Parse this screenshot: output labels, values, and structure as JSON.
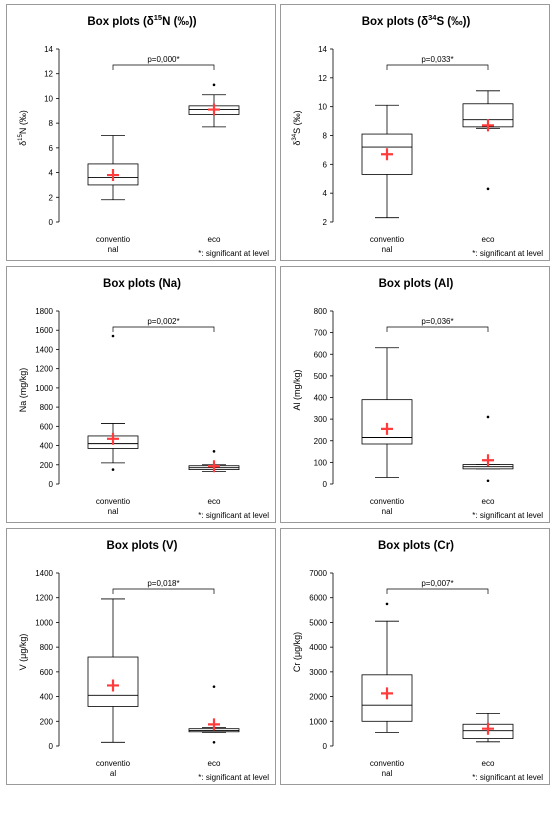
{
  "footnote": "*: significant at level",
  "mean_marker_color": "#ff3b3b",
  "chart_data": [
    {
      "type": "box",
      "title_main": "Box plots (δ",
      "title_sup": "15",
      "title_end": "N (‰))",
      "ylabel_main": "δ",
      "ylabel_sup": "15",
      "ylabel_end": "N (‰)",
      "categories": [
        "conventio\nnal",
        "eco"
      ],
      "ylim": [
        0,
        14
      ],
      "yticks": [
        0,
        2,
        4,
        6,
        8,
        10,
        12,
        14
      ],
      "pvalue": "p=0,000*",
      "boxes": [
        {
          "min": 1.8,
          "q1": 3.0,
          "median": 3.6,
          "q3": 4.7,
          "max": 7.0,
          "mean": 3.8,
          "outliers": []
        },
        {
          "min": 7.7,
          "q1": 8.7,
          "median": 9.1,
          "q3": 9.4,
          "max": 10.3,
          "mean": 9.1,
          "outliers": [
            11.1
          ]
        }
      ]
    },
    {
      "type": "box",
      "title_main": "Box plots (δ",
      "title_sup": "34",
      "title_end": "S (‰))",
      "ylabel_main": "δ",
      "ylabel_sup": "34",
      "ylabel_end": "S (‰)",
      "categories": [
        "conventio\nnal",
        "eco"
      ],
      "ylim": [
        2,
        14
      ],
      "yticks": [
        2,
        4,
        6,
        8,
        10,
        12,
        14
      ],
      "pvalue": "p=0,033*",
      "boxes": [
        {
          "min": 2.3,
          "q1": 5.3,
          "median": 7.2,
          "q3": 8.1,
          "max": 10.1,
          "mean": 6.7,
          "outliers": []
        },
        {
          "min": 8.5,
          "q1": 8.6,
          "median": 9.1,
          "q3": 10.2,
          "max": 11.1,
          "mean": 8.7,
          "outliers": [
            4.3
          ]
        }
      ]
    },
    {
      "type": "box",
      "title_main": "Box plots (Na)",
      "title_sup": "",
      "title_end": "",
      "ylabel_main": "Na (mg/kg)",
      "ylabel_sup": "",
      "ylabel_end": "",
      "categories": [
        "conventio\nnal",
        "eco"
      ],
      "ylim": [
        0,
        1800
      ],
      "yticks": [
        0,
        200,
        400,
        600,
        800,
        1000,
        1200,
        1400,
        1600,
        1800
      ],
      "pvalue": "p=0,002*",
      "boxes": [
        {
          "min": 220,
          "q1": 370,
          "median": 420,
          "q3": 500,
          "max": 630,
          "mean": 470,
          "outliers": [
            150,
            1540
          ]
        },
        {
          "min": 130,
          "q1": 150,
          "median": 170,
          "q3": 190,
          "max": 200,
          "mean": 185,
          "outliers": [
            340
          ]
        }
      ]
    },
    {
      "type": "box",
      "title_main": "Box plots (Al)",
      "title_sup": "",
      "title_end": "",
      "ylabel_main": "Al (mg/kg)",
      "ylabel_sup": "",
      "ylabel_end": "",
      "categories": [
        "conventio\nnal",
        "eco"
      ],
      "ylim": [
        0,
        800
      ],
      "yticks": [
        0,
        100,
        200,
        300,
        400,
        500,
        600,
        700,
        800
      ],
      "pvalue": "p=0,036*",
      "boxes": [
        {
          "min": 30,
          "q1": 185,
          "median": 215,
          "q3": 390,
          "max": 630,
          "mean": 255,
          "outliers": []
        },
        {
          "min": 70,
          "q1": 70,
          "median": 80,
          "q3": 90,
          "max": 90,
          "mean": 110,
          "outliers": [
            15,
            310
          ]
        }
      ]
    },
    {
      "type": "box",
      "title_main": "Box plots (V)",
      "title_sup": "",
      "title_end": "",
      "ylabel_main": "V (μg/kg)",
      "ylabel_sup": "",
      "ylabel_end": "",
      "categories": [
        "conventio\nal",
        "eco"
      ],
      "ylim": [
        0,
        1400
      ],
      "yticks": [
        0,
        200,
        400,
        600,
        800,
        1000,
        1200,
        1400
      ],
      "pvalue": "p=0,018*",
      "boxes": [
        {
          "min": 30,
          "q1": 320,
          "median": 410,
          "q3": 720,
          "max": 1190,
          "mean": 490,
          "outliers": []
        },
        {
          "min": 110,
          "q1": 115,
          "median": 125,
          "q3": 140,
          "max": 150,
          "mean": 175,
          "outliers": [
            30,
            480
          ]
        }
      ]
    },
    {
      "type": "box",
      "title_main": "Box plots (Cr)",
      "title_sup": "",
      "title_end": "",
      "ylabel_main": "Cr (μg/kg)",
      "ylabel_sup": "",
      "ylabel_end": "",
      "categories": [
        "conventio\nnal",
        "eco"
      ],
      "ylim": [
        0,
        7000
      ],
      "yticks": [
        0,
        1000,
        2000,
        3000,
        4000,
        5000,
        6000,
        7000
      ],
      "pvalue": "p=0,007*",
      "boxes": [
        {
          "min": 550,
          "q1": 1000,
          "median": 1650,
          "q3": 2880,
          "max": 5050,
          "mean": 2130,
          "outliers": [
            5750
          ]
        },
        {
          "min": 170,
          "q1": 300,
          "median": 620,
          "q3": 880,
          "max": 1320,
          "mean": 700,
          "outliers": []
        }
      ]
    }
  ]
}
